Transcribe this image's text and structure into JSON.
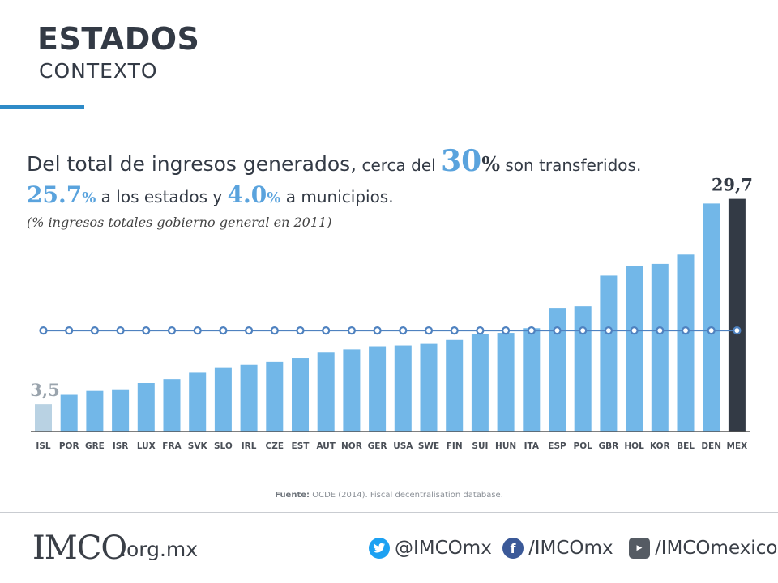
{
  "header": {
    "title": "ESTADOS",
    "subtitle": "CONTEXTO"
  },
  "headline": {
    "part1": "Del total de ingresos generados,",
    "part2": " cerca del ",
    "big_number": "30",
    "big_pct": "%",
    "part3": " son transferidos.",
    "states_number": "25.7",
    "states_pct": "%",
    "states_text": " a los estados y ",
    "muni_number": "4.0",
    "muni_pct": "%",
    "muni_text": " a municipios."
  },
  "note": "(% ingresos totales gobierno general en 2011)",
  "chart_data": {
    "type": "bar",
    "categories": [
      "ISL",
      "POR",
      "GRE",
      "ISR",
      "LUX",
      "FRA",
      "SVK",
      "SLO",
      "IRL",
      "CZE",
      "EST",
      "AUT",
      "NOR",
      "GER",
      "USA",
      "SWE",
      "FIN",
      "SUI",
      "HUN",
      "ITA",
      "ESP",
      "POL",
      "GBR",
      "HOL",
      "KOR",
      "BEL",
      "DEN",
      "MEX"
    ],
    "values": [
      3.5,
      4.7,
      5.2,
      5.3,
      6.2,
      6.7,
      7.5,
      8.2,
      8.5,
      8.9,
      9.4,
      10.1,
      10.5,
      10.9,
      11.0,
      11.2,
      11.7,
      12.4,
      12.6,
      13.2,
      15.8,
      16.0,
      19.9,
      21.1,
      21.4,
      22.6,
      29.1,
      29.7
    ],
    "value_labels": {
      "first": "3,5",
      "last": "29,7"
    },
    "reference_line": {
      "value": 12.9,
      "style": "dotted-markers"
    },
    "colors": {
      "default": "#72b7e8",
      "first": "#b9d2e3",
      "highlight": "#333a45",
      "reference": "#4f82c0"
    },
    "ylim": [
      0,
      31
    ],
    "grid": false,
    "legend": "none"
  },
  "source": {
    "label": "Fuente:",
    "text": " OCDE (2014). Fiscal decentralisation database."
  },
  "footer": {
    "logo": "IMCO",
    "domain": ".org.mx",
    "twitter": "@IMCOmx",
    "facebook": "/IMCOmx",
    "youtube": "/IMCOmexico",
    "icons": {
      "twitter": "twitter-bird-icon",
      "facebook": "facebook-f-icon",
      "youtube": "youtube-icon"
    }
  }
}
